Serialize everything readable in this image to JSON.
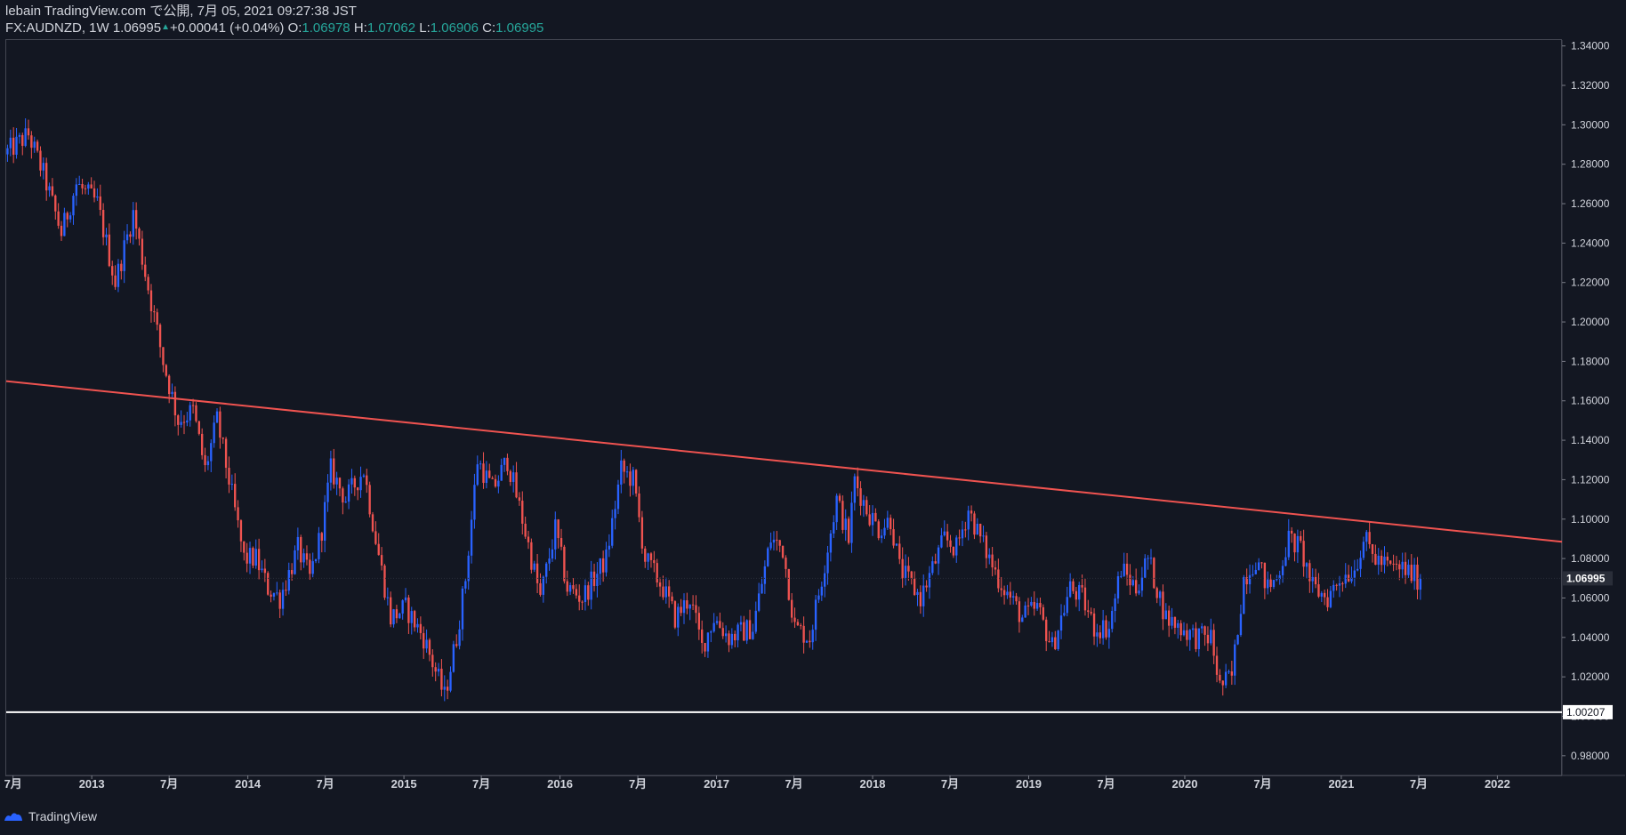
{
  "header": {
    "publish_line": "lebain TradingView.com で公開, 7月 05, 2021 09:27:38 JST",
    "symbol_prefix": "FX:AUDNZD, 1W 1.06995",
    "change_arrow": "▲",
    "change": "+0.00041 (+0.04%)",
    "o_label": " O:",
    "o_value": "1.06978",
    "h_label": " H:",
    "h_value": "1.07062",
    "l_label": " L:",
    "l_value": "1.06906",
    "c_label": " C:",
    "c_value": "1.06995"
  },
  "footer": {
    "brand": "TradingView"
  },
  "colors": {
    "background": "#131722",
    "up": "#2962ff",
    "down": "#ef5350",
    "trendline": "#ef5350",
    "support": "#ffffff",
    "grid_text": "#d1d4dc"
  },
  "chart_data": {
    "type": "candlestick",
    "symbol": "FX:AUDNZD",
    "interval": "1W",
    "ylim": [
      0.97,
      1.343
    ],
    "y_ticks": [
      "1.34000",
      "1.32000",
      "1.30000",
      "1.28000",
      "1.26000",
      "1.24000",
      "1.22000",
      "1.20000",
      "1.18000",
      "1.16000",
      "1.14000",
      "1.12000",
      "1.10000",
      "1.08000",
      "1.06000",
      "1.04000",
      "1.02000",
      "1.00000",
      "0.98000"
    ],
    "y_tick_values": [
      1.34,
      1.32,
      1.3,
      1.28,
      1.26,
      1.24,
      1.22,
      1.2,
      1.18,
      1.16,
      1.14,
      1.12,
      1.1,
      1.08,
      1.06,
      1.04,
      1.02,
      1.0,
      0.98
    ],
    "x_ticks": [
      {
        "label": "7月",
        "date": "2012-07-01"
      },
      {
        "label": "2013",
        "date": "2013-01-01"
      },
      {
        "label": "7月",
        "date": "2013-07-01"
      },
      {
        "label": "2014",
        "date": "2014-01-01"
      },
      {
        "label": "7月",
        "date": "2014-07-01"
      },
      {
        "label": "2015",
        "date": "2015-01-01"
      },
      {
        "label": "7月",
        "date": "2015-07-01"
      },
      {
        "label": "2016",
        "date": "2016-01-01"
      },
      {
        "label": "7月",
        "date": "2016-07-01"
      },
      {
        "label": "2017",
        "date": "2017-01-01"
      },
      {
        "label": "7月",
        "date": "2017-07-01"
      },
      {
        "label": "2018",
        "date": "2018-01-01"
      },
      {
        "label": "7月",
        "date": "2018-07-01"
      },
      {
        "label": "2019",
        "date": "2019-01-01"
      },
      {
        "label": "7月",
        "date": "2019-07-01"
      },
      {
        "label": "2020",
        "date": "2020-01-01"
      },
      {
        "label": "7月",
        "date": "2020-07-01"
      },
      {
        "label": "2021",
        "date": "2021-01-01"
      },
      {
        "label": "7月",
        "date": "2021-07-01"
      },
      {
        "label": "2022",
        "date": "2022-01-01"
      }
    ],
    "xlim": [
      "2012-06-15",
      "2022-06-01"
    ],
    "price_path": [
      [
        "2012-06-18",
        1.285
      ],
      [
        "2012-08-13",
        1.295
      ],
      [
        "2012-09-17",
        1.275
      ],
      [
        "2012-10-29",
        1.245
      ],
      [
        "2012-12-03",
        1.27
      ],
      [
        "2013-01-21",
        1.26
      ],
      [
        "2013-03-04",
        1.22
      ],
      [
        "2013-04-15",
        1.255
      ],
      [
        "2013-05-27",
        1.21
      ],
      [
        "2013-06-24",
        1.18
      ],
      [
        "2013-07-29",
        1.15
      ],
      [
        "2013-09-02",
        1.155
      ],
      [
        "2013-09-30",
        1.125
      ],
      [
        "2013-10-28",
        1.15
      ],
      [
        "2013-11-25",
        1.12
      ],
      [
        "2013-12-30",
        1.08
      ],
      [
        "2014-01-27",
        1.08
      ],
      [
        "2014-02-24",
        1.065
      ],
      [
        "2014-03-24",
        1.06
      ],
      [
        "2014-05-05",
        1.085
      ],
      [
        "2014-06-02",
        1.07
      ],
      [
        "2014-06-30",
        1.095
      ],
      [
        "2014-07-21",
        1.125
      ],
      [
        "2014-08-25",
        1.11
      ],
      [
        "2014-10-06",
        1.125
      ],
      [
        "2014-11-03",
        1.09
      ],
      [
        "2014-12-08",
        1.05
      ],
      [
        "2015-01-12",
        1.055
      ],
      [
        "2015-02-23",
        1.04
      ],
      [
        "2015-04-13",
        1.01
      ],
      [
        "2015-05-11",
        1.04
      ],
      [
        "2015-06-01",
        1.07
      ],
      [
        "2015-06-29",
        1.13
      ],
      [
        "2015-08-03",
        1.115
      ],
      [
        "2015-09-07",
        1.13
      ],
      [
        "2015-10-12",
        1.1
      ],
      [
        "2015-11-23",
        1.06
      ],
      [
        "2015-12-28",
        1.095
      ],
      [
        "2016-01-25",
        1.065
      ],
      [
        "2016-02-29",
        1.06
      ],
      [
        "2016-04-25",
        1.08
      ],
      [
        "2016-05-30",
        1.125
      ],
      [
        "2016-06-27",
        1.12
      ],
      [
        "2016-07-25",
        1.08
      ],
      [
        "2016-09-05",
        1.065
      ],
      [
        "2016-10-03",
        1.05
      ],
      [
        "2016-11-07",
        1.06
      ],
      [
        "2016-12-05",
        1.035
      ],
      [
        "2017-01-02",
        1.05
      ],
      [
        "2017-02-06",
        1.04
      ],
      [
        "2017-04-03",
        1.045
      ],
      [
        "2017-05-15",
        1.09
      ],
      [
        "2017-06-12",
        1.085
      ],
      [
        "2017-07-10",
        1.045
      ],
      [
        "2017-08-14",
        1.04
      ],
      [
        "2017-09-11",
        1.07
      ],
      [
        "2017-10-16",
        1.11
      ],
      [
        "2017-11-13",
        1.09
      ],
      [
        "2017-11-27",
        1.12
      ],
      [
        "2017-12-25",
        1.105
      ],
      [
        "2018-01-22",
        1.095
      ],
      [
        "2018-02-19",
        1.1
      ],
      [
        "2018-03-12",
        1.075
      ],
      [
        "2018-04-30",
        1.06
      ],
      [
        "2018-05-28",
        1.075
      ],
      [
        "2018-06-25",
        1.09
      ],
      [
        "2018-07-23",
        1.085
      ],
      [
        "2018-08-20",
        1.105
      ],
      [
        "2018-09-17",
        1.09
      ],
      [
        "2018-10-29",
        1.07
      ],
      [
        "2018-11-26",
        1.06
      ],
      [
        "2018-12-24",
        1.05
      ],
      [
        "2019-01-28",
        1.055
      ],
      [
        "2019-03-04",
        1.035
      ],
      [
        "2019-04-15",
        1.065
      ],
      [
        "2019-05-13",
        1.06
      ],
      [
        "2019-06-10",
        1.045
      ],
      [
        "2019-07-15",
        1.045
      ],
      [
        "2019-08-12",
        1.075
      ],
      [
        "2019-09-16",
        1.065
      ],
      [
        "2019-10-14",
        1.08
      ],
      [
        "2019-11-25",
        1.05
      ],
      [
        "2019-12-30",
        1.045
      ],
      [
        "2020-02-03",
        1.04
      ],
      [
        "2020-03-09",
        1.04
      ],
      [
        "2020-03-30",
        1.015
      ],
      [
        "2020-04-27",
        1.02
      ],
      [
        "2020-05-25",
        1.07
      ],
      [
        "2020-06-22",
        1.08
      ],
      [
        "2020-07-20",
        1.065
      ],
      [
        "2020-08-10",
        1.07
      ],
      [
        "2020-09-07",
        1.09
      ],
      [
        "2020-10-05",
        1.085
      ],
      [
        "2020-11-02",
        1.065
      ],
      [
        "2020-12-07",
        1.06
      ],
      [
        "2021-01-04",
        1.07
      ],
      [
        "2021-02-08",
        1.075
      ],
      [
        "2021-03-01",
        1.09
      ],
      [
        "2021-03-29",
        1.08
      ],
      [
        "2021-05-03",
        1.075
      ],
      [
        "2021-05-31",
        1.075
      ],
      [
        "2021-07-05",
        1.06995
      ]
    ],
    "trendline": {
      "from": [
        "2012-06-15",
        1.17
      ],
      "to": [
        "2022-06-01",
        1.0885
      ]
    },
    "support": {
      "value": 1.00207,
      "label": "1.00207"
    },
    "last_price": {
      "value": 1.06995,
      "label": "1.06995"
    }
  }
}
